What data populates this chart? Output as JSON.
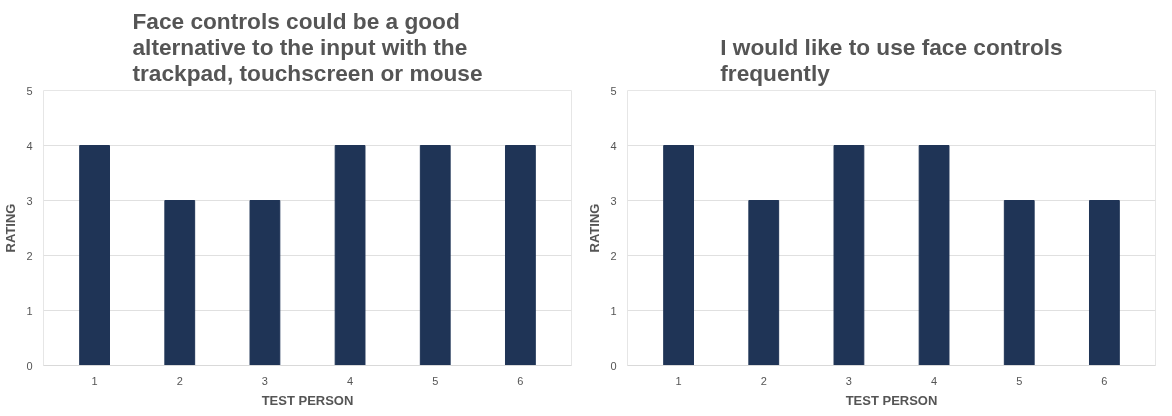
{
  "chart_data": [
    {
      "type": "bar",
      "title": "Face controls could be a good alternative to the input with the trackpad, touchscreen or mouse",
      "xlabel": "TEST PERSON",
      "ylabel": "RATING",
      "categories": [
        "1",
        "2",
        "3",
        "4",
        "5",
        "6"
      ],
      "values": [
        4,
        3,
        3,
        4,
        4,
        4
      ],
      "color": "#1f3456",
      "ylim": [
        0,
        5
      ],
      "yticks": [
        0,
        1,
        2,
        3,
        4,
        5
      ],
      "grid": "y"
    },
    {
      "type": "bar",
      "title": "I would like to use face controls frequently",
      "xlabel": "TEST PERSON",
      "ylabel": "RATING",
      "categories": [
        "1",
        "2",
        "3",
        "4",
        "5",
        "6"
      ],
      "values": [
        4,
        3,
        4,
        4,
        3,
        3
      ],
      "color": "#1f3456",
      "ylim": [
        0,
        5
      ],
      "yticks": [
        0,
        1,
        2,
        3,
        4,
        5
      ],
      "grid": "y"
    }
  ]
}
